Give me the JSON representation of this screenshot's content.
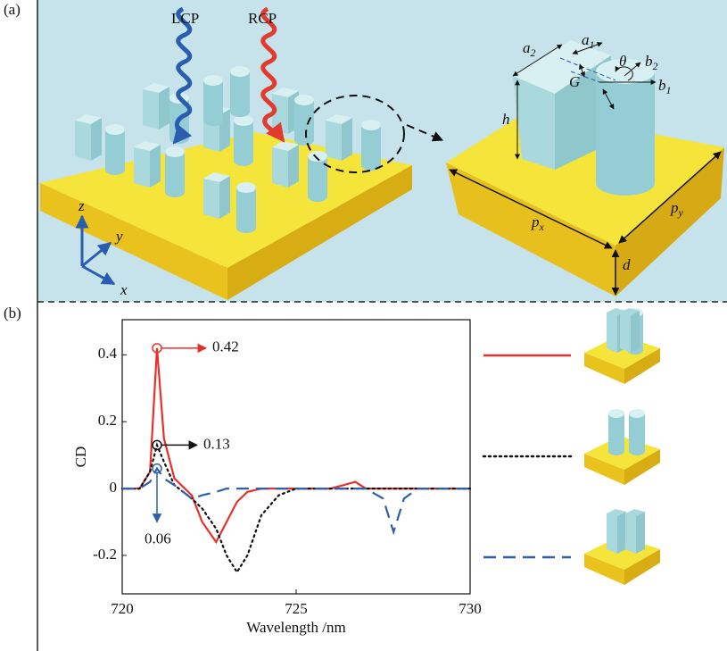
{
  "panels": {
    "a": "(a)",
    "b": "(b)"
  },
  "schematic": {
    "beams": {
      "left": "LCP",
      "right": "RCP"
    },
    "dims": {
      "a2": {
        "symbol": "a",
        "sub": "2"
      },
      "a1": {
        "symbol": "a",
        "sub": "1"
      },
      "theta": "θ",
      "b2": {
        "symbol": "b",
        "sub": "2"
      },
      "G": "G",
      "b1": {
        "symbol": "b",
        "sub": "1"
      },
      "h": "h",
      "px": {
        "symbol": "p",
        "sub": "x"
      },
      "py": {
        "symbol": "p",
        "sub": "y"
      },
      "d": "d"
    },
    "axes": {
      "z": "z",
      "y": "y",
      "x": "x"
    }
  },
  "chart_data": {
    "type": "line",
    "xlabel": "Wavelength /nm",
    "ylabel": "CD",
    "x": [
      720,
      720.5,
      720.8,
      721,
      721.2,
      721.5,
      722,
      722.3,
      722.7,
      723,
      723.3,
      723.6,
      724,
      724.5,
      725,
      726,
      726.7,
      727,
      727.5,
      727.8,
      728.1,
      728.5,
      729,
      730
    ],
    "series": [
      {
        "color": "#e8302a",
        "dash": "solid",
        "values": [
          0,
          0,
          0.05,
          0.42,
          0.15,
          0.03,
          -0.02,
          -0.1,
          -0.16,
          -0.1,
          -0.04,
          -0.01,
          0,
          0,
          0,
          0,
          0.02,
          0,
          0,
          0,
          0,
          0,
          0,
          0
        ]
      },
      {
        "color": "#111111",
        "dash": "dotted",
        "values": [
          0,
          0,
          0.05,
          0.13,
          0.08,
          0.01,
          -0.03,
          -0.06,
          -0.12,
          -0.2,
          -0.25,
          -0.2,
          -0.08,
          -0.02,
          0,
          0,
          0,
          0,
          0,
          0,
          0,
          0,
          0,
          0
        ]
      },
      {
        "color": "#2f5fa8",
        "dash": "dashed",
        "values": [
          0,
          0,
          0.02,
          0.06,
          0.03,
          0.01,
          -0.03,
          -0.02,
          -0.01,
          0,
          0,
          0,
          0,
          0,
          0,
          0,
          0,
          0,
          -0.03,
          -0.13,
          -0.03,
          0,
          0,
          0
        ]
      }
    ],
    "annotations": [
      {
        "x": 721,
        "y": 0.42,
        "label": "0.42",
        "color": "#e8302a"
      },
      {
        "x": 721,
        "y": 0.13,
        "label": "0.13",
        "color": "#111111"
      },
      {
        "x": 721,
        "y": 0.06,
        "label": "0.06",
        "color": "#2f5fa8"
      }
    ],
    "xlim": [
      720,
      730
    ],
    "ylim": [
      -0.315,
      0.505
    ],
    "xticks": [
      720,
      725,
      730
    ],
    "yticks": [
      -0.2,
      0,
      0.2,
      0.4
    ]
  }
}
